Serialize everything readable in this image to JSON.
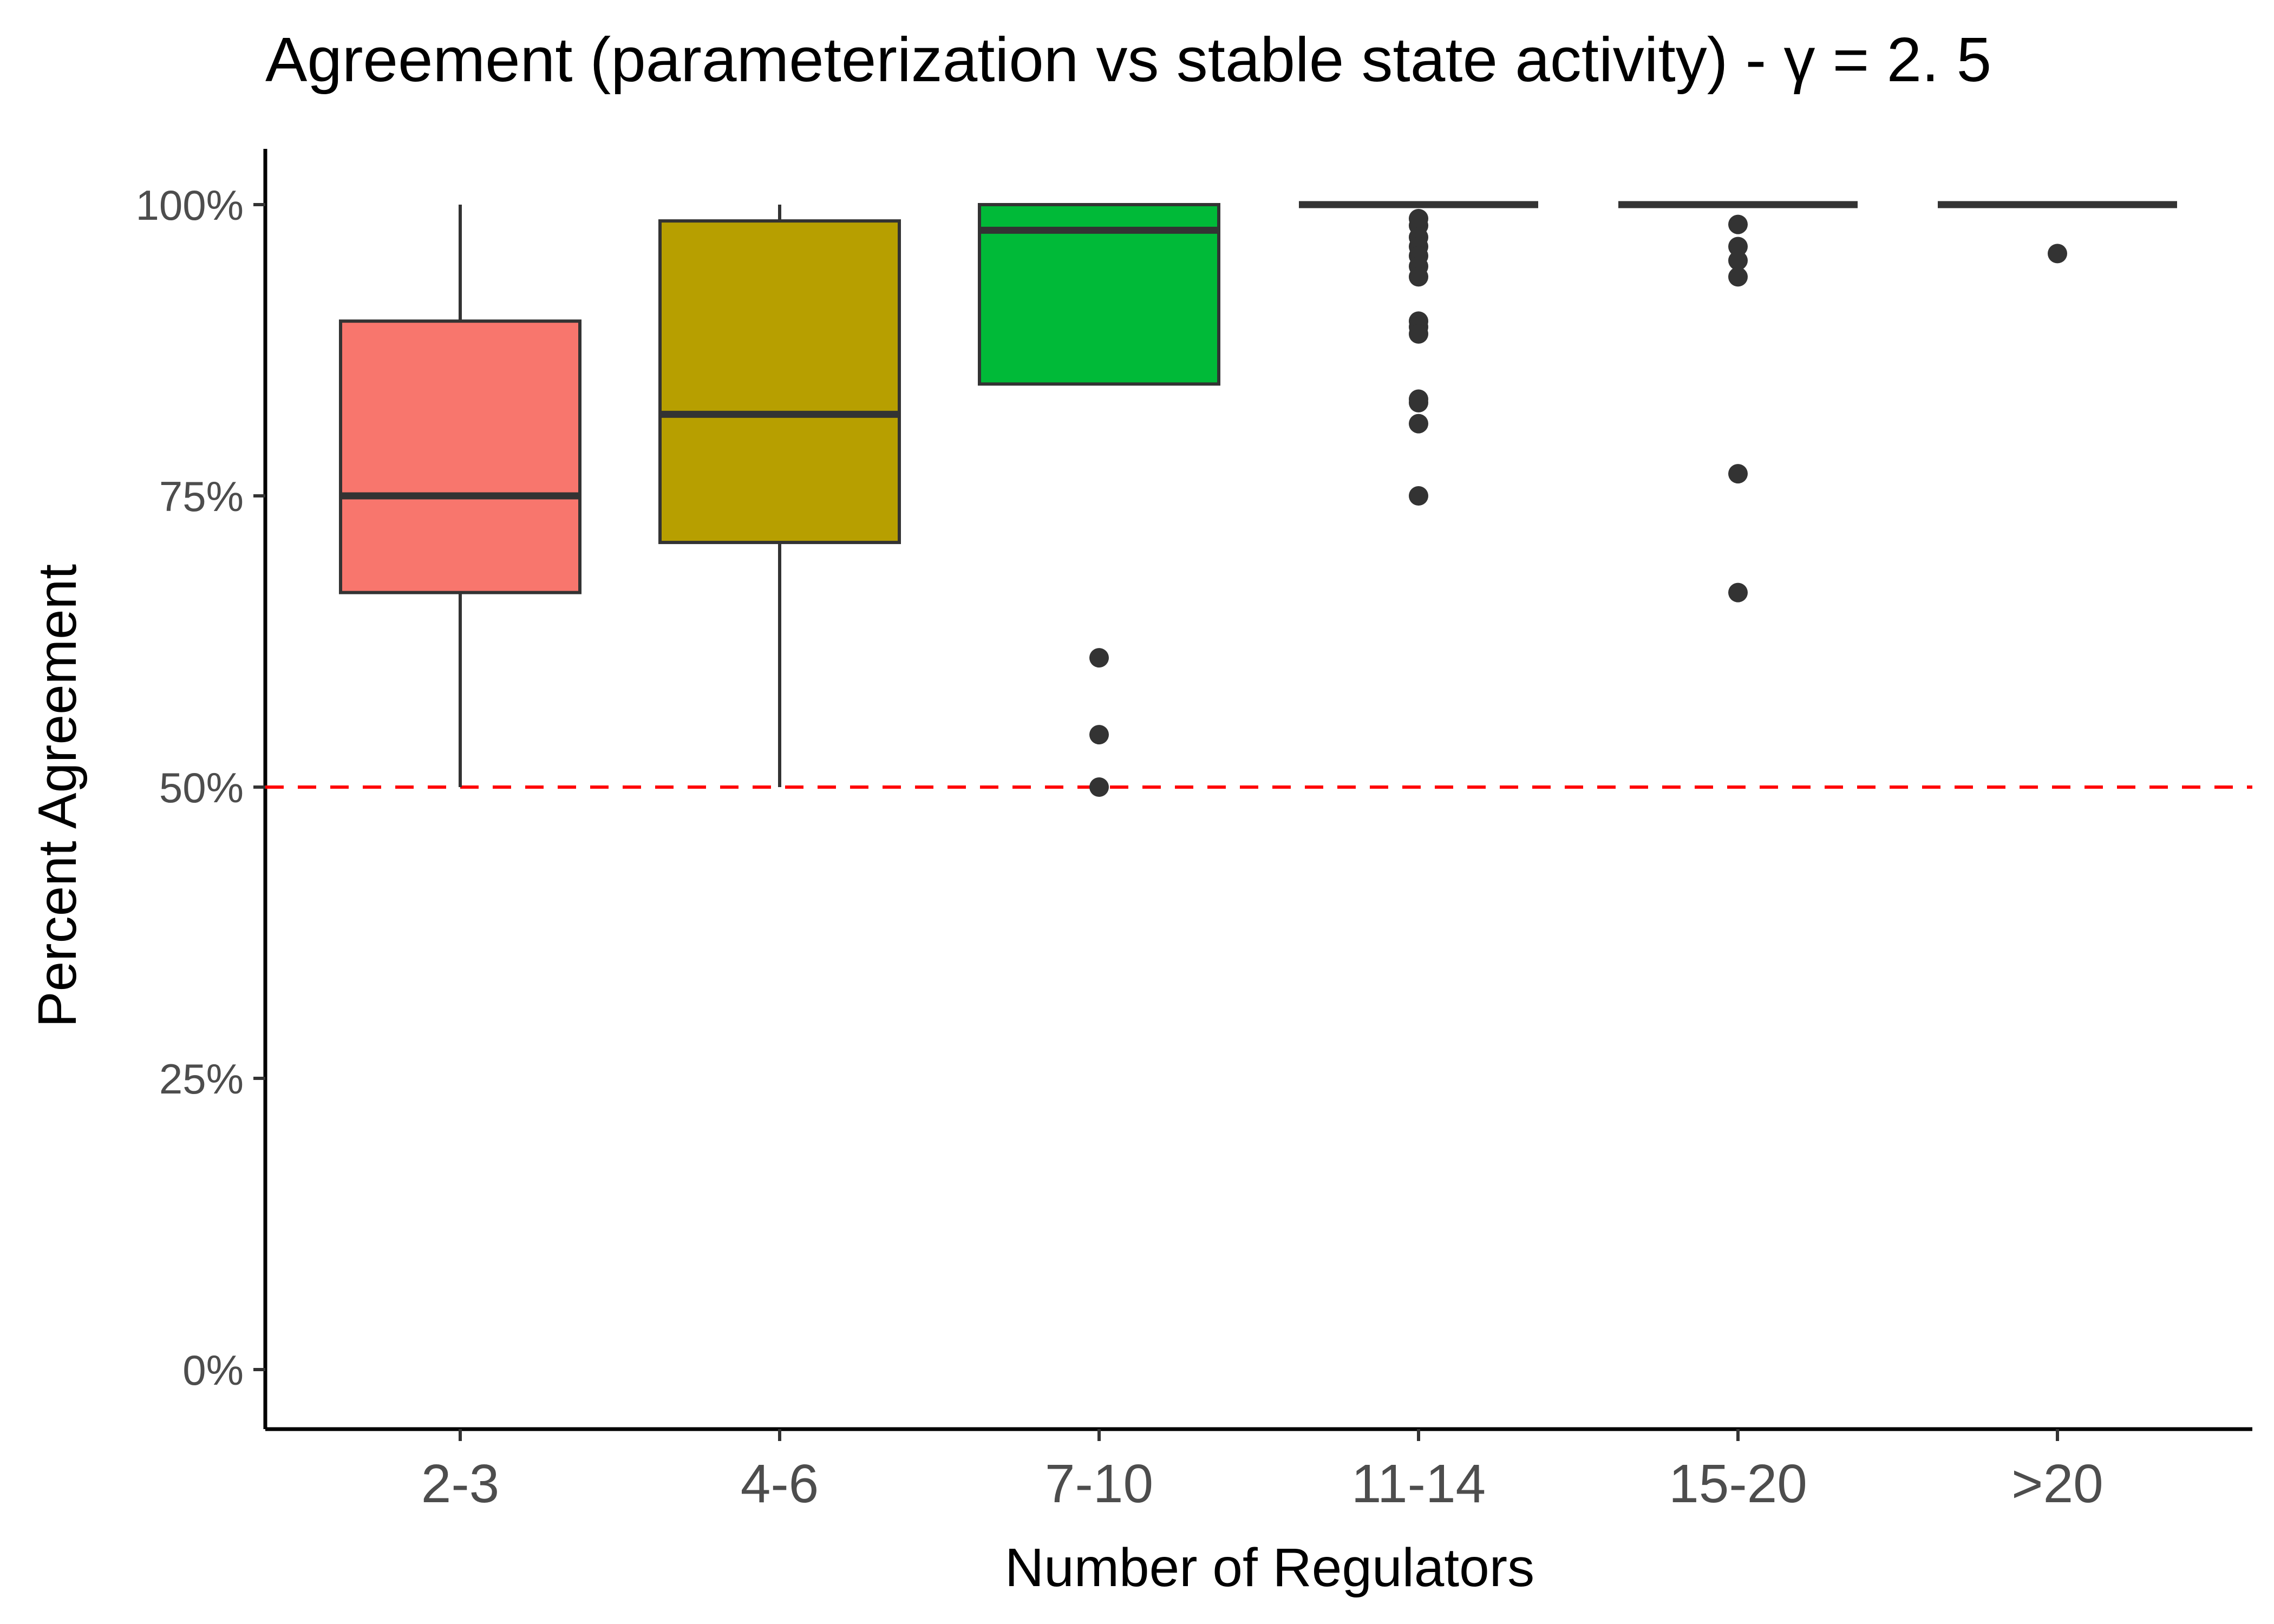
{
  "chart_data": {
    "type": "boxplot",
    "title": "Agreement (parameterization vs stable state activity) - γ = 2. 5",
    "xlabel": "Number of Regulators",
    "ylabel": "Percent Agreement",
    "ylim": [
      -5,
      105
    ],
    "y_ticks": [
      0,
      25,
      50,
      75,
      100
    ],
    "y_tick_labels": [
      "0%",
      "25%",
      "50%",
      "75%",
      "100%"
    ],
    "reference_line": {
      "y": 50,
      "color": "#ff0000",
      "style": "dashed"
    },
    "grid": false,
    "legend": "none",
    "categories": [
      "2-3",
      "4-6",
      "7-10",
      "11-14",
      "15-20",
      ">20"
    ],
    "boxes": [
      {
        "category": "2-3",
        "fill": "#f8766d",
        "whisker_low": 50,
        "q1": 66.7,
        "median": 75,
        "q3": 90,
        "whisker_high": 100,
        "outliers": []
      },
      {
        "category": "4-6",
        "fill": "#b79f00",
        "whisker_low": 50,
        "q1": 71,
        "median": 82,
        "q3": 98.6,
        "whisker_high": 100,
        "outliers": []
      },
      {
        "category": "7-10",
        "fill": "#00ba38",
        "whisker_low": 84.6,
        "q1": 84.6,
        "median": 97.8,
        "q3": 100,
        "whisker_high": 100,
        "outliers": [
          61.1,
          54.5,
          50
        ]
      },
      {
        "category": "11-14",
        "fill": "#00bfc4",
        "whisker_low": 100,
        "q1": 100,
        "median": 100,
        "q3": 100,
        "whisker_high": 100,
        "outliers": [
          98.8,
          98.2,
          97.2,
          96.4,
          95.6,
          94.7,
          93.8,
          90.0,
          89.5,
          88.9,
          83.3,
          83.0,
          81.2,
          75.0
        ]
      },
      {
        "category": "15-20",
        "fill": "#619cff",
        "whisker_low": 100,
        "q1": 100,
        "median": 100,
        "q3": 100,
        "whisker_high": 100,
        "outliers": [
          98.3,
          96.4,
          95.2,
          93.8,
          76.9,
          66.7
        ]
      },
      {
        "category": ">20",
        "fill": "#f564e3",
        "whisker_low": 100,
        "q1": 100,
        "median": 100,
        "q3": 100,
        "whisker_high": 100,
        "outliers": [
          95.8
        ]
      }
    ]
  }
}
